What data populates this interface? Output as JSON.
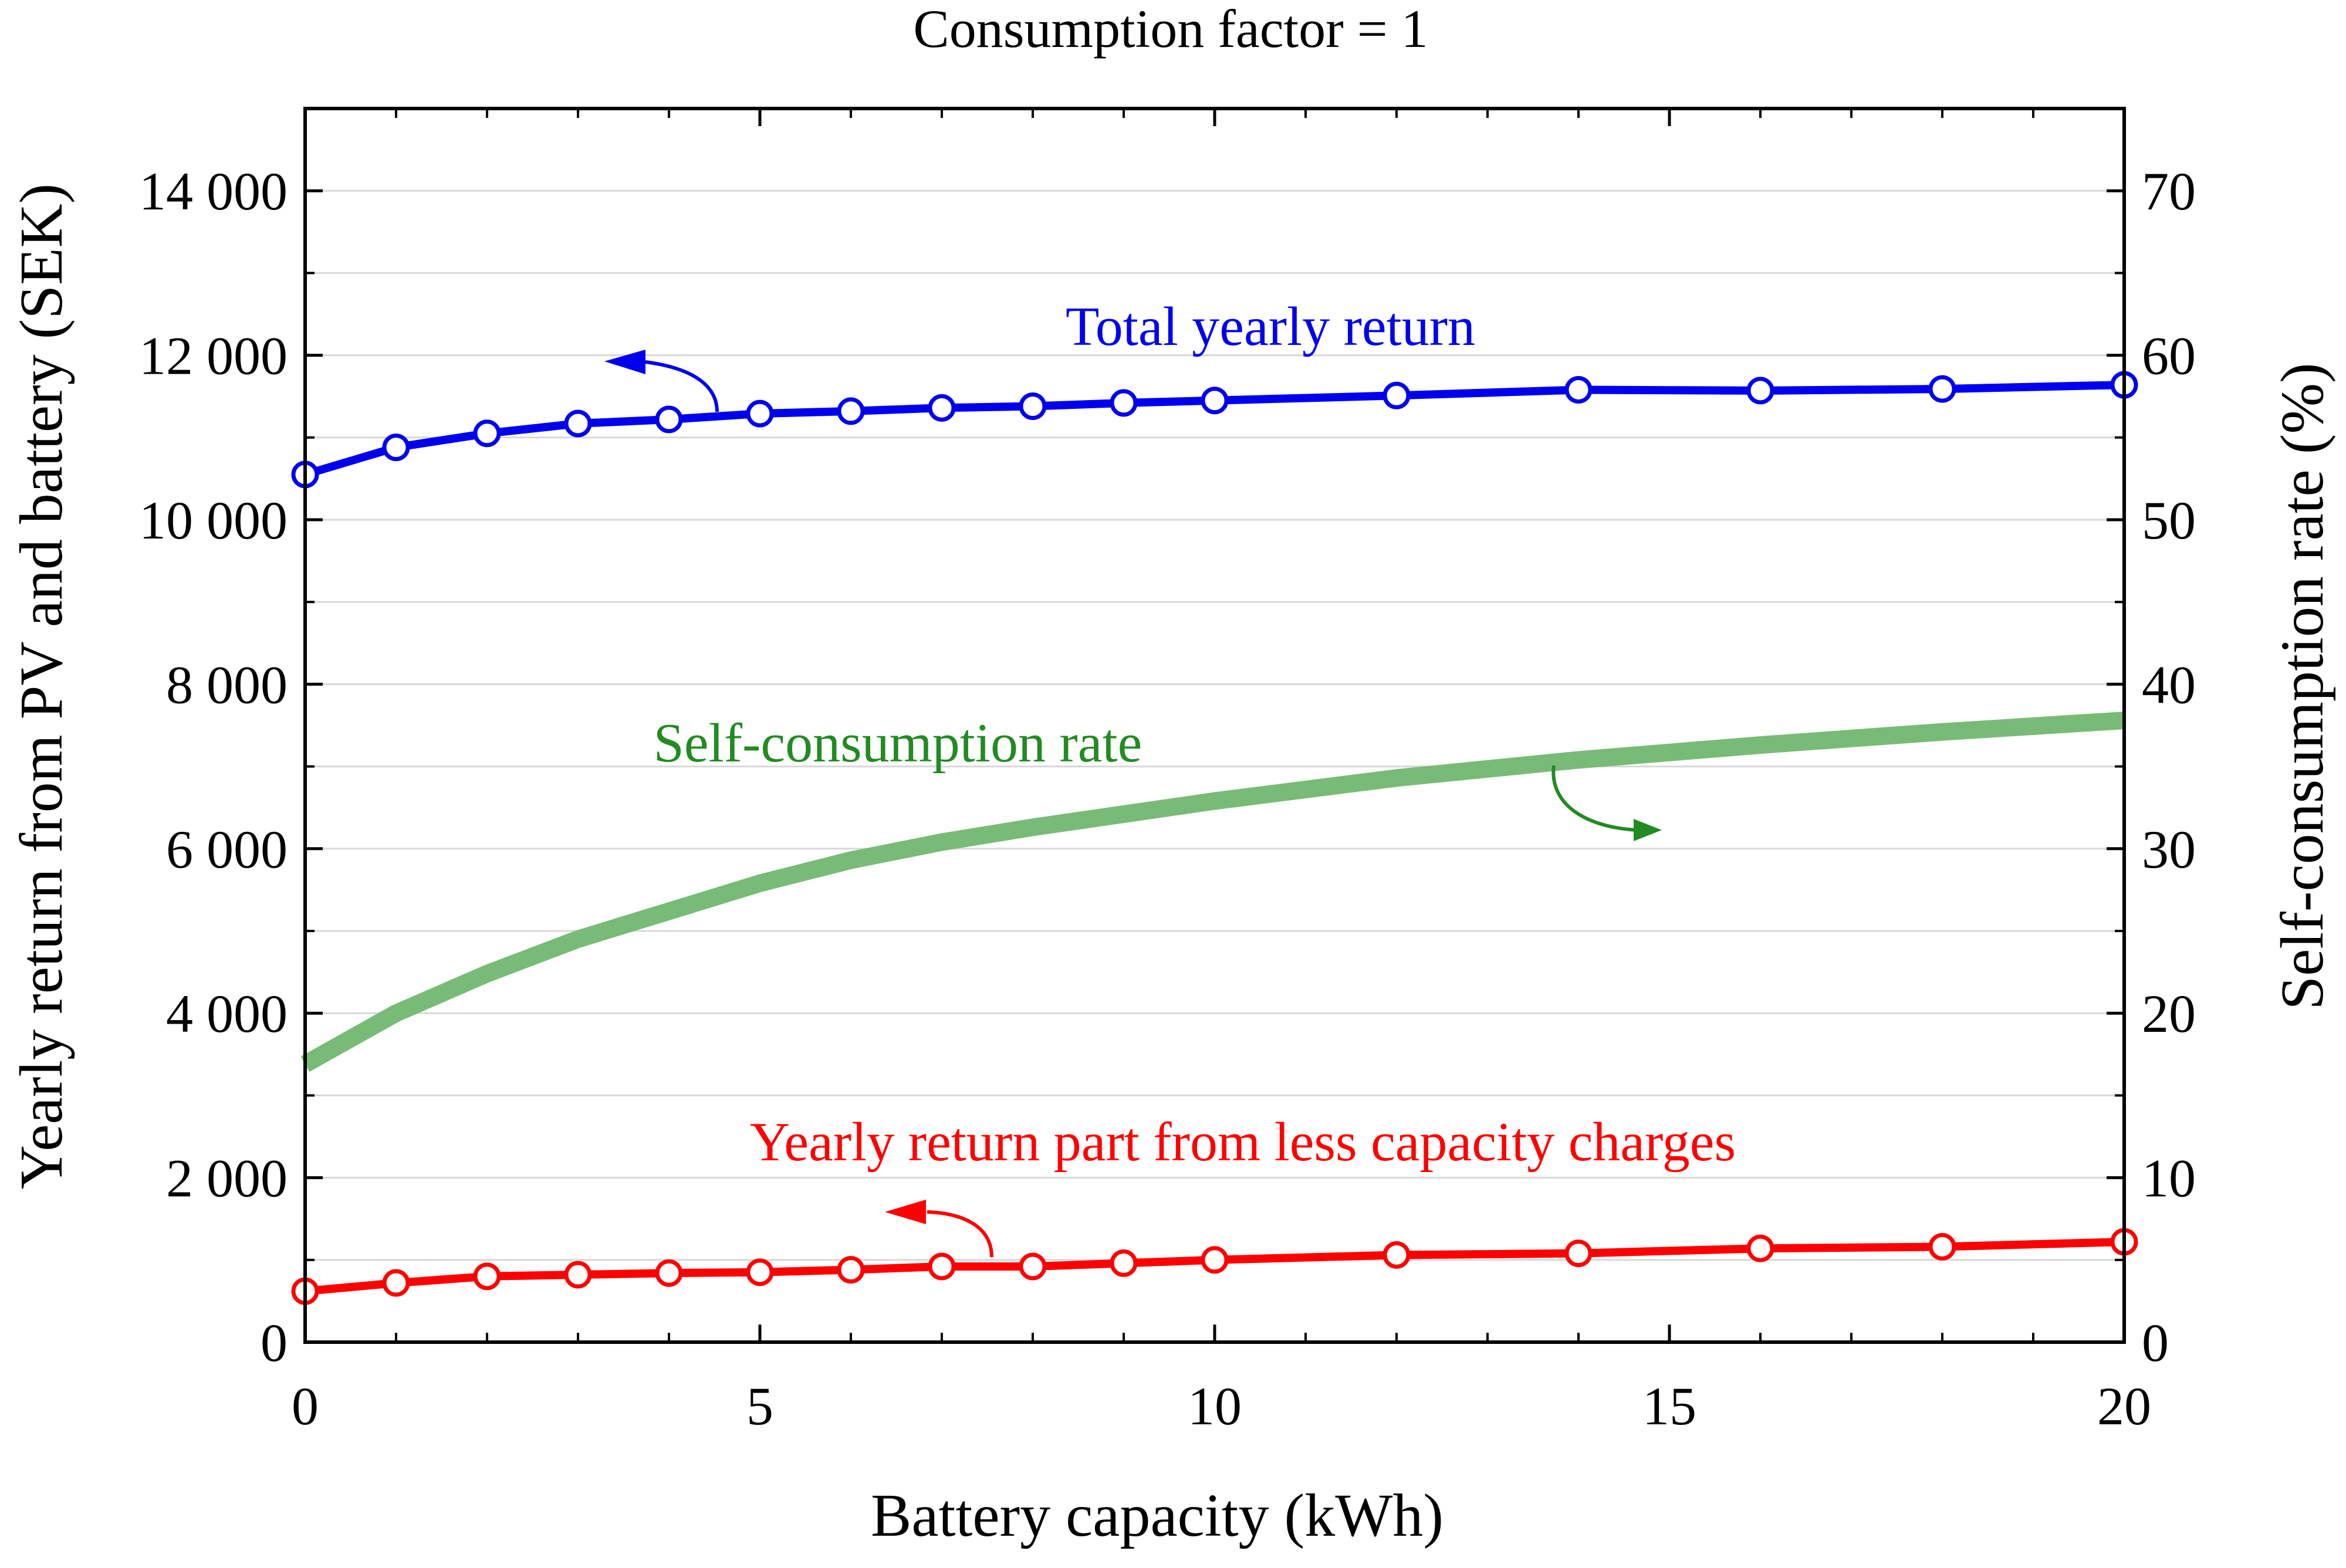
{
  "chart_data": {
    "type": "line",
    "title": "Consumption factor = 1",
    "xlabel": "Battery capacity (kWh)",
    "ylabel_left": "Yearly return from PV and battery (SEK)",
    "ylabel_right": "Self-consumption rate (%)",
    "xlim": [
      0,
      20
    ],
    "ylim_left": [
      0,
      15000
    ],
    "ylim_right": [
      0,
      75
    ],
    "x_ticks": [
      0,
      5,
      10,
      15,
      20
    ],
    "x_tick_labels": [
      "0",
      "5",
      "10",
      "15",
      "20"
    ],
    "y_left_ticks": [
      0,
      2000,
      4000,
      6000,
      8000,
      10000,
      12000,
      14000
    ],
    "y_left_tick_labels": [
      "0",
      "2 000",
      "4 000",
      "6 000",
      "8 000",
      "10 000",
      "12 000",
      "14 000"
    ],
    "y_right_ticks": [
      0,
      10,
      20,
      30,
      40,
      50,
      60,
      70
    ],
    "y_right_tick_labels": [
      "0",
      "10",
      "20",
      "30",
      "40",
      "50",
      "60",
      "70"
    ],
    "grid": true,
    "series": [
      {
        "name": "Total yearly return",
        "axis": "left",
        "color": "#0000ee",
        "marker": "open-circle",
        "x": [
          0,
          1,
          2,
          3,
          4,
          5,
          6,
          7,
          8,
          9,
          10,
          12,
          14,
          16,
          18,
          20
        ],
        "values": [
          10550,
          10880,
          11050,
          11170,
          11220,
          11290,
          11320,
          11360,
          11380,
          11420,
          11450,
          11510,
          11580,
          11570,
          11590,
          11640
        ]
      },
      {
        "name": "Self-consumption rate",
        "axis": "right",
        "color": "#77bb77",
        "marker": "none",
        "x": [
          0,
          1,
          2,
          3,
          4,
          5,
          6,
          7,
          8,
          9,
          10,
          12,
          14,
          16,
          18,
          20
        ],
        "values": [
          16.9,
          20.0,
          22.4,
          24.5,
          26.2,
          27.9,
          29.3,
          30.4,
          31.3,
          32.1,
          32.9,
          34.3,
          35.4,
          36.3,
          37.1,
          37.8
        ]
      },
      {
        "name": "Yearly return part from less capacity charges",
        "axis": "left",
        "color": "#ff0000",
        "marker": "open-circle",
        "x": [
          0,
          1,
          2,
          3,
          4,
          5,
          6,
          7,
          8,
          9,
          10,
          12,
          14,
          16,
          18,
          20
        ],
        "values": [
          620,
          720,
          800,
          820,
          840,
          850,
          880,
          920,
          920,
          960,
          1000,
          1060,
          1080,
          1140,
          1160,
          1220
        ]
      }
    ],
    "annotations": [
      {
        "text": "Total yearly return",
        "color": "#0000ee",
        "arrow": "left-axis"
      },
      {
        "text": "Self-consumption rate",
        "color": "#228b22",
        "arrow": "right-axis"
      },
      {
        "text": "Yearly return part from less capacity charges",
        "color": "#ff0000",
        "arrow": "left-axis"
      }
    ]
  }
}
